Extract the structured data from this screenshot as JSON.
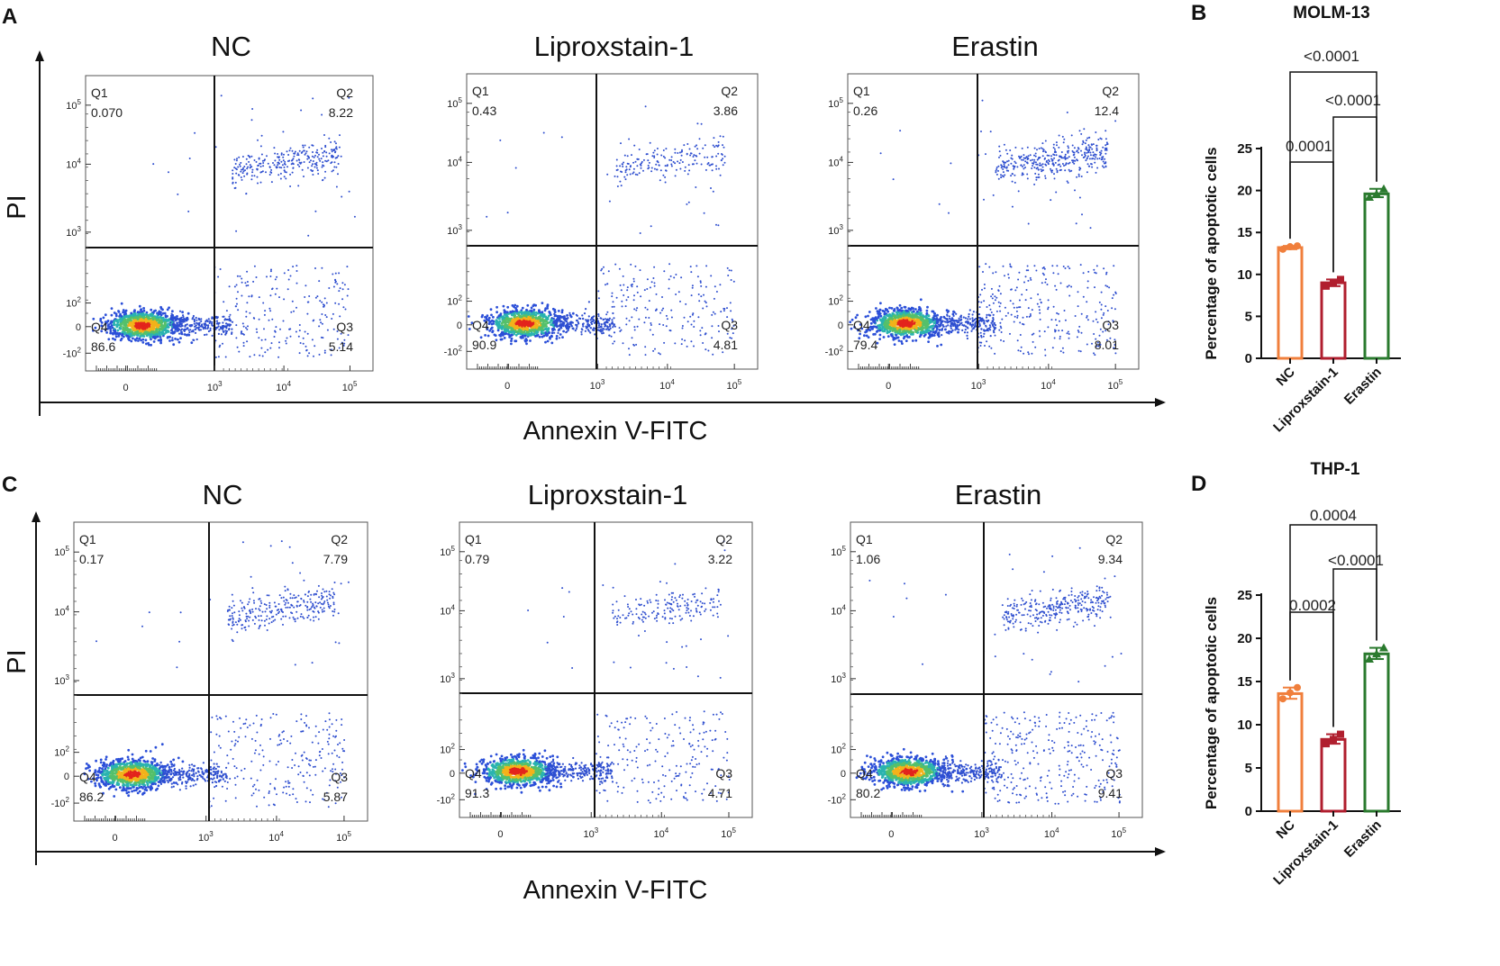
{
  "axis_labels": {
    "x": "Annexin V-FITC",
    "y": "PI"
  },
  "tick_labels": {
    "y": [
      "10^5",
      "10^4",
      "10^3",
      "10^2",
      "0",
      "-10^2"
    ],
    "x": [
      "0",
      "10^3",
      "10^4",
      "10^5"
    ]
  },
  "chart_data": [
    {
      "type": "scatter",
      "panel": "A",
      "plots": [
        {
          "title": "NC",
          "Q1": "0.070",
          "Q2": "8.22",
          "Q3": "5.14",
          "Q4": "86.6"
        },
        {
          "title": "Liproxstain-1",
          "Q1": "0.43",
          "Q2": "3.86",
          "Q3": "4.81",
          "Q4": "90.9"
        },
        {
          "title": "Erastin",
          "Q1": "0.26",
          "Q2": "12.4",
          "Q3": "8.01",
          "Q4": "79.4"
        }
      ],
      "xlabel": "Annexin V-FITC",
      "ylabel": "PI"
    },
    {
      "type": "bar",
      "panel": "B",
      "title": "MOLM-13",
      "categories": [
        "NC",
        "Liproxstain-1",
        "Erastin"
      ],
      "values": [
        13.2,
        9.0,
        19.6
      ],
      "points": [
        [
          13.0,
          13.3,
          13.4
        ],
        [
          8.6,
          9.0,
          9.4
        ],
        [
          19.2,
          19.6,
          20.2
        ]
      ],
      "colors": [
        "#f07f3c",
        "#b01e2e",
        "#2a7a2e"
      ],
      "ylabel": "Percentage of apoptotic cells",
      "ylim": [
        0,
        25
      ],
      "yticks": [
        "0",
        "5",
        "10",
        "15",
        "20",
        "25"
      ],
      "comparisons": [
        {
          "from": "NC",
          "to": "Liproxstain-1",
          "p": "0.0001"
        },
        {
          "from": "Liproxstain-1",
          "to": "Erastin",
          "p": "<0.0001"
        },
        {
          "from": "NC",
          "to": "Erastin",
          "p": "<0.0001"
        }
      ]
    },
    {
      "type": "scatter",
      "panel": "C",
      "plots": [
        {
          "title": "NC",
          "Q1": "0.17",
          "Q2": "7.79",
          "Q3": "5.87",
          "Q4": "86.2"
        },
        {
          "title": "Liproxstain-1",
          "Q1": "0.79",
          "Q2": "3.22",
          "Q3": "4.71",
          "Q4": "91.3"
        },
        {
          "title": "Erastin",
          "Q1": "1.06",
          "Q2": "9.34",
          "Q3": "9.41",
          "Q4": "80.2"
        }
      ],
      "xlabel": "Annexin V-FITC",
      "ylabel": "PI"
    },
    {
      "type": "bar",
      "panel": "D",
      "title": "THP-1",
      "categories": [
        "NC",
        "Liproxstain-1",
        "Erastin"
      ],
      "values": [
        13.6,
        8.3,
        18.2
      ],
      "points": [
        [
          13.0,
          13.7,
          14.3
        ],
        [
          7.8,
          8.3,
          8.9
        ],
        [
          17.6,
          18.2,
          18.9
        ]
      ],
      "colors": [
        "#f07f3c",
        "#b01e2e",
        "#2a7a2e"
      ],
      "ylabel": "Percentage of apoptotic cells",
      "ylim": [
        0,
        25
      ],
      "yticks": [
        "0",
        "5",
        "10",
        "15",
        "20",
        "25"
      ],
      "comparisons": [
        {
          "from": "NC",
          "to": "Liproxstain-1",
          "p": "0.0002"
        },
        {
          "from": "Liproxstain-1",
          "to": "Erastin",
          "p": "<0.0001"
        },
        {
          "from": "NC",
          "to": "Erastin",
          "p": "0.0004"
        }
      ]
    }
  ]
}
